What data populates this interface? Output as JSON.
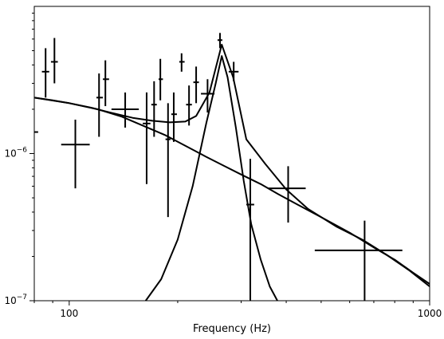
{
  "chart_data": {
    "type": "line",
    "title": "",
    "xlabel": "Frequency (Hz)",
    "ylabel": "",
    "xscale": "log",
    "yscale": "log",
    "xlim": [
      80,
      1000
    ],
    "ylim": [
      1e-07,
      1e-05
    ],
    "grid": false,
    "x_tick_labels": [
      {
        "value": 100,
        "label": "100"
      },
      {
        "value": 1000,
        "label": "1000"
      }
    ],
    "y_tick_labels": [
      {
        "value": 1e-07,
        "label": "10^-7",
        "base": "10",
        "exp": "−7"
      },
      {
        "value": 1e-06,
        "label": "10^-6",
        "base": "10",
        "exp": "−6"
      }
    ],
    "series": [
      {
        "style": "line",
        "x": [
          80,
          90,
          100,
          115,
          130,
          150,
          170,
          190,
          210,
          225,
          245,
          265,
          285,
          310,
          350,
          400,
          460,
          550,
          650,
          760,
          880,
          1000
        ],
        "y": [
          2.4e-06,
          2.3e-06,
          2.2e-06,
          2.05e-06,
          1.9e-06,
          1.75e-06,
          1.67e-06,
          1.63e-06,
          1.65e-06,
          1.8e-06,
          2.6e-06,
          5.5e-06,
          3.3e-06,
          1.25e-06,
          8.5e-07,
          5.7e-07,
          4.2e-07,
          3.2e-07,
          2.6e-07,
          2.05e-07,
          1.6e-07,
          1.25e-07
        ]
      },
      {
        "style": "line",
        "x": [
          80,
          100,
          120,
          140,
          160,
          185,
          210,
          240,
          270,
          300,
          340,
          380,
          430,
          500,
          600,
          700,
          800,
          900,
          1000
        ],
        "y": [
          2.4e-06,
          2.2e-06,
          2e-06,
          1.78e-06,
          1.55e-06,
          1.33e-06,
          1.13e-06,
          9.5e-07,
          8.2e-07,
          7.2e-07,
          6.2e-07,
          5.3e-07,
          4.5e-07,
          3.7e-07,
          2.9e-07,
          2.3e-07,
          1.9e-07,
          1.55e-07,
          1.3e-07
        ]
      },
      {
        "style": "line",
        "x": [
          163,
          180,
          200,
          220,
          240,
          255,
          265,
          275,
          290,
          305,
          320,
          340,
          360,
          378
        ],
        "y": [
          1e-07,
          1.4e-07,
          2.6e-07,
          6e-07,
          1.6e-06,
          3e-06,
          4.6e-06,
          3.3e-06,
          1.5e-06,
          6.5e-07,
          3.3e-07,
          1.9e-07,
          1.25e-07,
          1e-07
        ]
      },
      {
        "style": "errorbar",
        "points": [
          {
            "x": 80,
            "xlo": 78,
            "xhi": 82,
            "y": 1.4e-06
          },
          {
            "x": 86,
            "xlo": 84,
            "xhi": 88,
            "y": 3.6e-06,
            "ylo": 2.4e-06,
            "yhi": 5.2e-06
          },
          {
            "x": 91,
            "xlo": 89,
            "xhi": 93,
            "y": 4.2e-06,
            "ylo": 3e-06,
            "yhi": 6.1e-06
          },
          {
            "x": 104,
            "xlo": 95,
            "xhi": 114,
            "y": 1.15e-06,
            "ylo": 5.8e-07,
            "yhi": 1.7e-06
          },
          {
            "x": 121,
            "xlo": 119,
            "xhi": 124,
            "y": 2.4e-06,
            "ylo": 1.3e-06,
            "yhi": 3.5e-06
          },
          {
            "x": 126,
            "xlo": 124,
            "xhi": 129,
            "y": 3.2e-06,
            "ylo": 2.1e-06,
            "yhi": 4.3e-06
          },
          {
            "x": 143,
            "xlo": 131,
            "xhi": 156,
            "y": 2e-06,
            "ylo": 1.5e-06,
            "yhi": 2.6e-06
          },
          {
            "x": 164,
            "xlo": 160,
            "xhi": 168,
            "y": 1.6e-06,
            "ylo": 6.2e-07,
            "yhi": 2.6e-06
          },
          {
            "x": 172,
            "xlo": 169,
            "xhi": 175,
            "y": 2.15e-06,
            "ylo": 1.3e-06,
            "yhi": 3.1e-06
          },
          {
            "x": 179,
            "xlo": 177,
            "xhi": 182,
            "y": 3.2e-06,
            "ylo": 2.3e-06,
            "yhi": 4.4e-06
          },
          {
            "x": 188,
            "xlo": 185,
            "xhi": 191,
            "y": 1.25e-06,
            "ylo": 3.7e-07,
            "yhi": 2.2e-06
          },
          {
            "x": 195,
            "xlo": 192,
            "xhi": 199,
            "y": 1.85e-06,
            "ylo": 1.2e-06,
            "yhi": 2.6e-06
          },
          {
            "x": 205,
            "xlo": 202,
            "xhi": 209,
            "y": 4.2e-06,
            "ylo": 3.6e-06,
            "yhi": 4.8e-06
          },
          {
            "x": 215,
            "xlo": 211,
            "xhi": 219,
            "y": 2.15e-06,
            "ylo": 1.55e-06,
            "yhi": 2.9e-06
          },
          {
            "x": 225,
            "xlo": 221,
            "xhi": 229,
            "y": 3.05e-06,
            "ylo": 2.2e-06,
            "yhi": 3.9e-06
          },
          {
            "x": 242,
            "xlo": 232,
            "xhi": 253,
            "y": 2.55e-06,
            "ylo": 1.9e-06,
            "yhi": 3.2e-06
          },
          {
            "x": 262,
            "xlo": 258,
            "xhi": 266,
            "y": 5.9e-06,
            "ylo": 5.2e-06,
            "yhi": 6.6e-06
          },
          {
            "x": 286,
            "xlo": 277,
            "xhi": 295,
            "y": 3.6e-06,
            "ylo": 3.1e-06,
            "yhi": 4.2e-06
          },
          {
            "x": 318,
            "xlo": 310,
            "xhi": 326,
            "y": 4.5e-07,
            "ylo": 1e-07,
            "yhi": 9.2e-07
          },
          {
            "x": 405,
            "xlo": 357,
            "xhi": 453,
            "y": 5.8e-07,
            "ylo": 3.4e-07,
            "yhi": 8.2e-07
          },
          {
            "x": 660,
            "xlo": 480,
            "xhi": 840,
            "y": 2.2e-07,
            "ylo": 1e-07,
            "yhi": 3.5e-07
          }
        ]
      }
    ]
  }
}
